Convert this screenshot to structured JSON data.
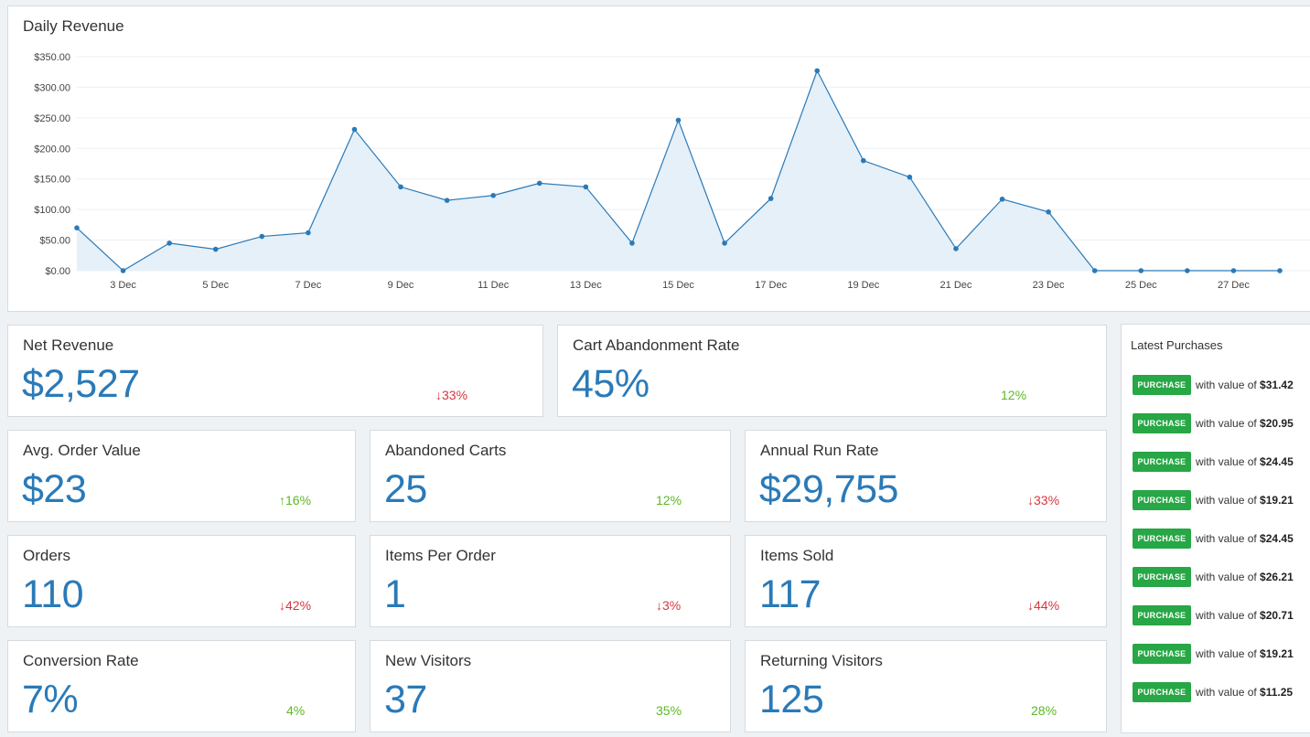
{
  "revenue_chart": {
    "title": "Daily Revenue"
  },
  "chart_data": {
    "type": "area",
    "title": "Daily Revenue",
    "xlabel": "",
    "ylabel": "",
    "x": [
      "2 Dec",
      "3 Dec",
      "4 Dec",
      "5 Dec",
      "6 Dec",
      "7 Dec",
      "8 Dec",
      "9 Dec",
      "10 Dec",
      "11 Dec",
      "12 Dec",
      "13 Dec",
      "14 Dec",
      "15 Dec",
      "16 Dec",
      "17 Dec",
      "18 Dec",
      "19 Dec",
      "20 Dec",
      "21 Dec",
      "22 Dec",
      "23 Dec",
      "24 Dec",
      "25 Dec",
      "26 Dec",
      "27 Dec",
      "28 Dec"
    ],
    "x_tick_labels": [
      "3 Dec",
      "5 Dec",
      "7 Dec",
      "9 Dec",
      "11 Dec",
      "13 Dec",
      "15 Dec",
      "17 Dec",
      "19 Dec",
      "21 Dec",
      "23 Dec",
      "25 Dec",
      "27 Dec"
    ],
    "y_tick_labels": [
      "$0.00",
      "$50.00",
      "$100.00",
      "$150.00",
      "$200.00",
      "$250.00",
      "$300.00",
      "$350.00"
    ],
    "values": [
      70,
      0,
      45,
      35,
      56,
      62,
      231,
      137,
      115,
      123,
      143,
      137,
      45,
      246,
      45,
      118,
      327,
      180,
      153,
      36,
      117,
      96,
      0,
      0,
      0,
      0,
      0
    ],
    "ylim": [
      0,
      350
    ],
    "grid": true,
    "colors": {
      "line": "#2a7ab8",
      "fill": "#e6f0f9"
    }
  },
  "metrics": {
    "net_revenue": {
      "title": "Net Revenue",
      "value": "$2,527",
      "change": "33%",
      "direction": "down"
    },
    "cart_abandonment": {
      "title": "Cart Abandonment Rate",
      "value": "45%",
      "change": "12%",
      "direction": "neutral"
    },
    "avg_order": {
      "title": "Avg. Order Value",
      "value": "$23",
      "change": "16%",
      "direction": "up"
    },
    "abandoned_carts": {
      "title": "Abandoned Carts",
      "value": "25",
      "change": "12%",
      "direction": "neutral"
    },
    "annual_run_rate": {
      "title": "Annual Run Rate",
      "value": "$29,755",
      "change": "33%",
      "direction": "down"
    },
    "orders": {
      "title": "Orders",
      "value": "110",
      "change": "42%",
      "direction": "down"
    },
    "items_per_order": {
      "title": "Items Per Order",
      "value": "1",
      "change": "3%",
      "direction": "down"
    },
    "items_sold": {
      "title": "Items Sold",
      "value": "117",
      "change": "44%",
      "direction": "down"
    },
    "conversion_rate": {
      "title": "Conversion Rate",
      "value": "7%",
      "change": "4%",
      "direction": "neutral"
    },
    "new_visitors": {
      "title": "New Visitors",
      "value": "37",
      "change": "35%",
      "direction": "neutral"
    },
    "returning_visitors": {
      "title": "Returning Visitors",
      "value": "125",
      "change": "28%",
      "direction": "neutral"
    }
  },
  "latest_purchases": {
    "title": "Latest Purchases",
    "badge_label": "PURCHASE",
    "prefix": "with value of",
    "items": [
      "$31.42",
      "$20.95",
      "$24.45",
      "$19.21",
      "$24.45",
      "$26.21",
      "$20.71",
      "$19.21",
      "$11.25"
    ]
  },
  "colors": {
    "accent": "#2a7ab8",
    "down": "#d9363e",
    "up": "#5cb823",
    "badge": "#27a745"
  }
}
